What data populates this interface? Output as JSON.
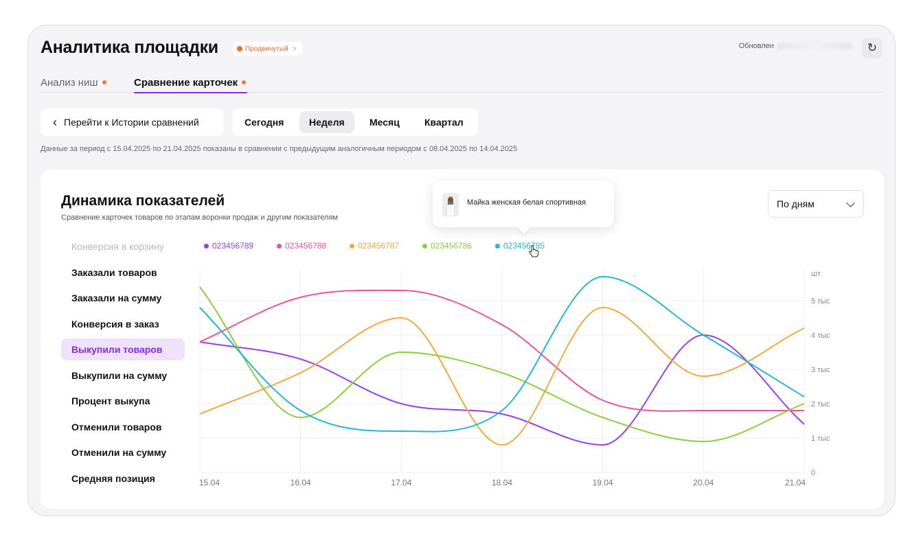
{
  "header": {
    "title": "Аналитика площадки",
    "plan_badge": "Продвинутый",
    "plan_chevron": ">",
    "updated_label": "Обновлен"
  },
  "tabs": [
    {
      "label": "Анализ ниш",
      "active": false
    },
    {
      "label": "Сравнение карточек",
      "active": true
    }
  ],
  "history_button": {
    "label": "Перейти к Истории сравнений"
  },
  "periods": [
    {
      "label": "Сегодня",
      "active": false
    },
    {
      "label": "Неделя",
      "active": true
    },
    {
      "label": "Месяц",
      "active": false
    },
    {
      "label": "Квартал",
      "active": false
    }
  ],
  "period_note": "Данные за период с 15.04.2025 по 21.04.2025 показаны в сравнении с предыдущим аналогичным периодом с 08.04.2025 по 14.04.2025",
  "card": {
    "title": "Динамика показателей",
    "subtitle": "Сравнение карточек товаров по этапам воронки продаж и другим показателям",
    "dropdown_value": "По дням"
  },
  "tooltip": {
    "product_name": "Майка женская белая спортивная"
  },
  "metrics": [
    {
      "label": "Конверсия в корзину",
      "state": "faded"
    },
    {
      "label": "Заказали товаров",
      "state": "normal"
    },
    {
      "label": "Заказали на сумму",
      "state": "normal"
    },
    {
      "label": "Конверсия в заказ",
      "state": "normal"
    },
    {
      "label": "Выкупили товаров",
      "state": "active"
    },
    {
      "label": "Выкупили на сумму",
      "state": "normal"
    },
    {
      "label": "Процент выкупа",
      "state": "normal"
    },
    {
      "label": "Отменили товаров",
      "state": "normal"
    },
    {
      "label": "Отменили на сумму",
      "state": "normal"
    },
    {
      "label": "Средняя позиция",
      "state": "normal"
    }
  ],
  "colors": {
    "accent": "#8a2be2",
    "orange_dot": "#f07a3c"
  },
  "chart_data": {
    "type": "line",
    "x": [
      "15.04",
      "16.04",
      "17.04",
      "18.04",
      "19.04",
      "20.04",
      "21.04"
    ],
    "y_unit": "шт",
    "y_ticks": [
      "0",
      "1 тыс",
      "2 тыс",
      "3 тыс",
      "4 тыс",
      "5 тыс"
    ],
    "ylim": [
      0,
      5700
    ],
    "grid": true,
    "legend_position": "top",
    "series": [
      {
        "name": "023456789",
        "color": "#9b3ee8",
        "values": [
          3800,
          3300,
          2000,
          1700,
          800,
          4000,
          1400
        ]
      },
      {
        "name": "023456788",
        "color": "#e8559a",
        "values": [
          3800,
          5100,
          5300,
          4300,
          2100,
          1800,
          1800
        ]
      },
      {
        "name": "023456787",
        "color": "#f2a93b",
        "values": [
          1700,
          2900,
          4500,
          800,
          4800,
          2800,
          4200
        ]
      },
      {
        "name": "023456786",
        "color": "#8ccf3c",
        "values": [
          5400,
          1600,
          3500,
          2900,
          1600,
          900,
          2000
        ]
      },
      {
        "name": "023456785",
        "color": "#22b8d1",
        "values": [
          4800,
          1800,
          1200,
          1800,
          5700,
          4000,
          2200
        ]
      }
    ]
  }
}
